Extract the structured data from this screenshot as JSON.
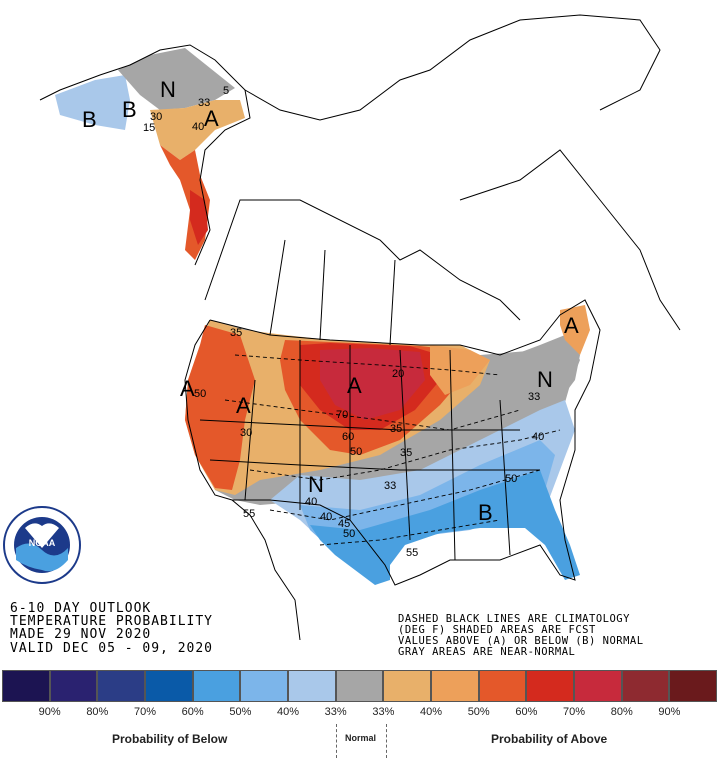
{
  "outlook": {
    "line1": "6-10 DAY OUTLOOK",
    "line2": "TEMPERATURE PROBABILITY",
    "line3": "MADE  29 NOV 2020",
    "line4": "VALID  DEC 05 - 09, 2020"
  },
  "note": {
    "line1": "DASHED BLACK LINES ARE CLIMATOLOGY",
    "line2": "(DEG F) SHADED AREAS ARE FCST",
    "line3": "VALUES ABOVE (A) OR BELOW (B) NORMAL",
    "line4": "GRAY AREAS ARE NEAR-NORMAL"
  },
  "logo": {
    "text": "NOAA",
    "ring_text": "NATIONAL OCEANIC AND ATMOSPHERIC ADMINISTRATION · U.S. DEPARTMENT OF COMMERCE"
  },
  "map_labels": {
    "a_west": "A",
    "a_basin": "A",
    "a_plains": "A",
    "a_alaska": "A",
    "a_maine": "A",
    "b_southeast": "B",
    "b_alaska_w": "B",
    "b_alaska_nw": "B",
    "n_south": "N",
    "n_east": "N",
    "n_alaska": "N"
  },
  "isotherms": {
    "i20": "20",
    "i30": "30",
    "i33a": "33",
    "i33b": "33",
    "i35a": "35",
    "i35b": "35",
    "i35c": "35",
    "i40a": "40",
    "i40b": "40",
    "i40c": "40",
    "i40d": "40",
    "i45": "45",
    "i50a": "50",
    "i50b": "50",
    "i50c": "50",
    "i50d": "50",
    "i55a": "55",
    "i55b": "55",
    "i60": "60",
    "i70": "70",
    "ak5": "5",
    "ak33": "33",
    "ak40": "40",
    "ak30": "30",
    "ak15": "15"
  },
  "legend": {
    "colors": [
      "#1c1452",
      "#2a2270",
      "#2b3d86",
      "#0a5aa8",
      "#4aa0e0",
      "#7cb5ea",
      "#a9c8ea",
      "#a6a6a6",
      "#e8b06a",
      "#eda05a",
      "#e4582a",
      "#d42a1e",
      "#c72a3c",
      "#8e2a30",
      "#6a1a1c"
    ],
    "percents": [
      "90%",
      "80%",
      "70%",
      "60%",
      "50%",
      "40%",
      "33%",
      "33%",
      "40%",
      "50%",
      "60%",
      "70%",
      "80%",
      "90%"
    ],
    "below_label": "Probability of Below",
    "normal_label": "Normal",
    "above_label": "Probability of Above"
  }
}
